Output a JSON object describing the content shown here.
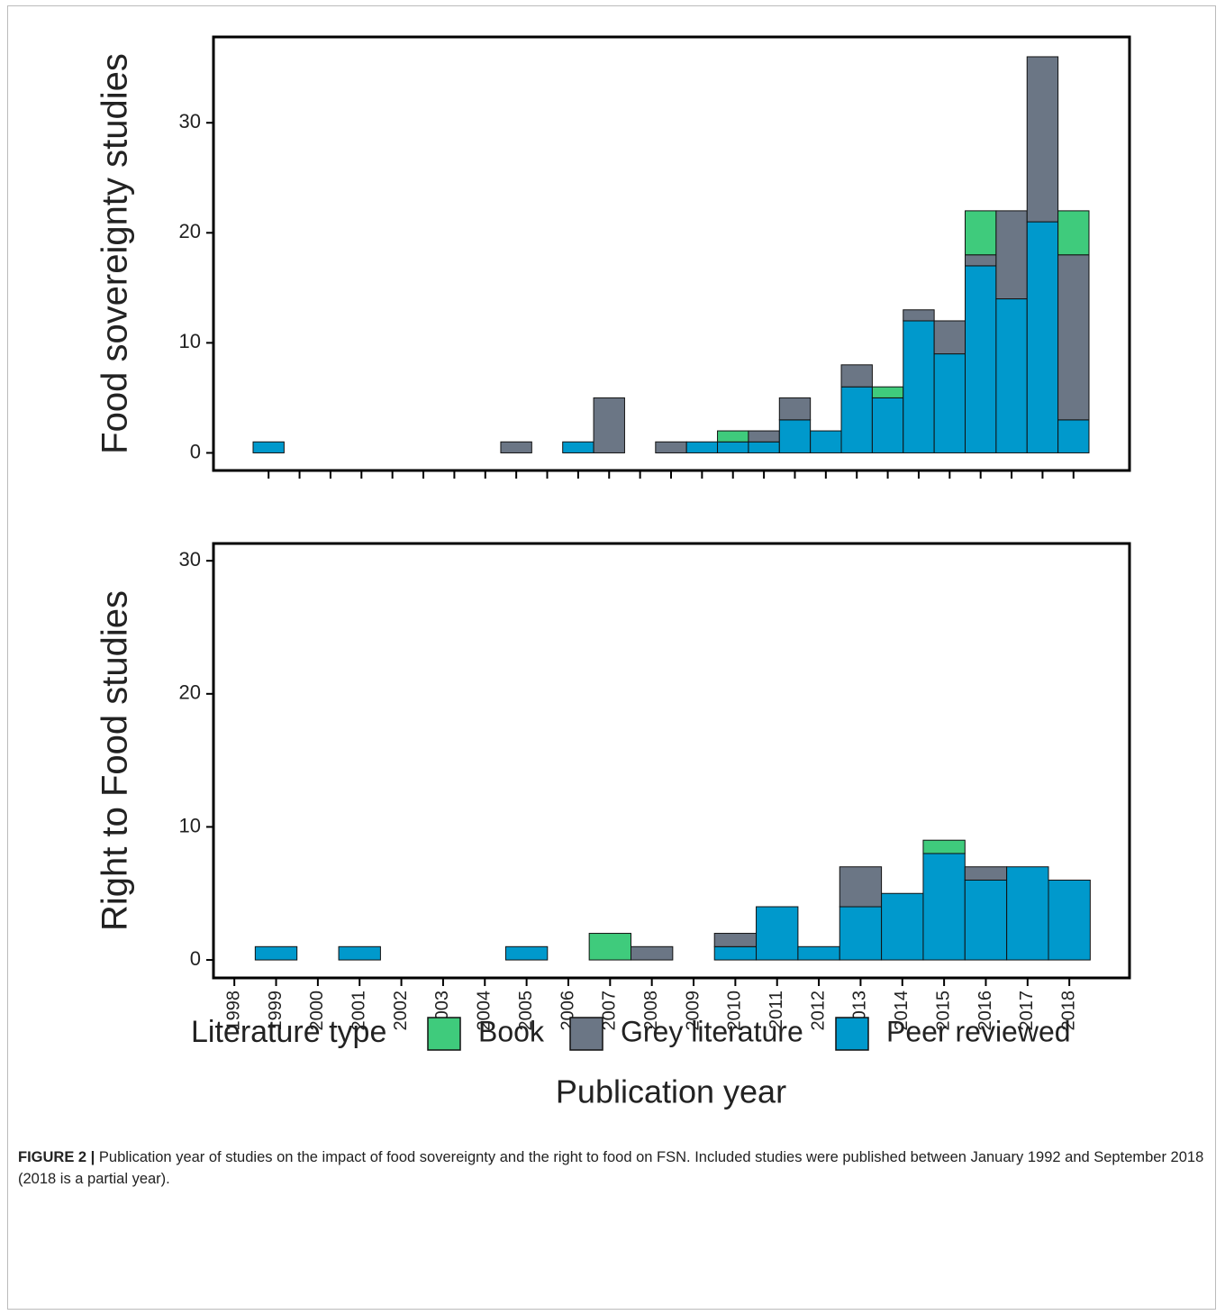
{
  "chart_data": [
    {
      "type": "bar",
      "stacked": true,
      "ylabel": "Food sovereignty studies",
      "categories": [
        null,
        null,
        null,
        null,
        null,
        null,
        null,
        null,
        null,
        null,
        null,
        null,
        null,
        null,
        null,
        null,
        null,
        null,
        null,
        null,
        null,
        null,
        null,
        null,
        null,
        null,
        null
      ],
      "series": [
        {
          "name": "Peer reviewed",
          "color": "#0099cc",
          "values": [
            1,
            0,
            0,
            0,
            0,
            0,
            0,
            0,
            0,
            0,
            1,
            0,
            0,
            0,
            1,
            1,
            1,
            3,
            2,
            6,
            5,
            12,
            9,
            17,
            14,
            21,
            3
          ]
        },
        {
          "name": "Grey literature",
          "color": "#6b7685",
          "values": [
            0,
            0,
            0,
            0,
            0,
            0,
            0,
            0,
            1,
            0,
            0,
            5,
            0,
            1,
            0,
            0,
            1,
            2,
            0,
            2,
            0,
            1,
            3,
            1,
            8,
            15,
            15
          ]
        },
        {
          "name": "Book",
          "color": "#3fcb7c",
          "values": [
            0,
            0,
            0,
            0,
            0,
            0,
            0,
            0,
            0,
            0,
            0,
            0,
            0,
            0,
            0,
            1,
            0,
            0,
            0,
            0,
            1,
            0,
            0,
            4,
            0,
            0,
            4
          ]
        }
      ],
      "ylim": [
        -1.6,
        37.8
      ],
      "yticks": [
        0,
        10,
        20,
        30
      ]
    },
    {
      "type": "bar",
      "stacked": true,
      "ylabel": "Right to Food studies",
      "xlabel": "Publication year",
      "legend_title": "Literature type",
      "categories": [
        "1998",
        "1999",
        "2000",
        "2001",
        "2002",
        "2003",
        "2004",
        "2005",
        "2006",
        "2007",
        "2008",
        "2009",
        "2010",
        "2011",
        "2012",
        "2013",
        "2014",
        "2015",
        "2016",
        "2017",
        "2018"
      ],
      "series": [
        {
          "name": "Peer reviewed",
          "color": "#0099cc",
          "values": [
            0,
            1,
            0,
            1,
            0,
            0,
            0,
            1,
            0,
            0,
            0,
            0,
            1,
            4,
            1,
            4,
            5,
            8,
            6,
            7,
            6
          ]
        },
        {
          "name": "Grey literature",
          "color": "#6b7685",
          "values": [
            0,
            0,
            0,
            0,
            0,
            0,
            0,
            0,
            0,
            0,
            1,
            0,
            1,
            0,
            0,
            3,
            0,
            0,
            1,
            0,
            0
          ]
        },
        {
          "name": "Book",
          "color": "#3fcb7c",
          "values": [
            0,
            0,
            0,
            0,
            0,
            0,
            0,
            0,
            0,
            2,
            0,
            0,
            0,
            0,
            0,
            0,
            0,
            1,
            0,
            0,
            0
          ]
        }
      ],
      "ylim": [
        -1.35,
        31.3
      ],
      "yticks": [
        0,
        10,
        20,
        30
      ]
    }
  ],
  "caption": {
    "label": "FIGURE 2 |",
    "text": "Publication year of studies on the impact of food sovereignty and the right to food on FSN. Included studies were published between January 1992 and September 2018 (2018 is a partial year)."
  }
}
